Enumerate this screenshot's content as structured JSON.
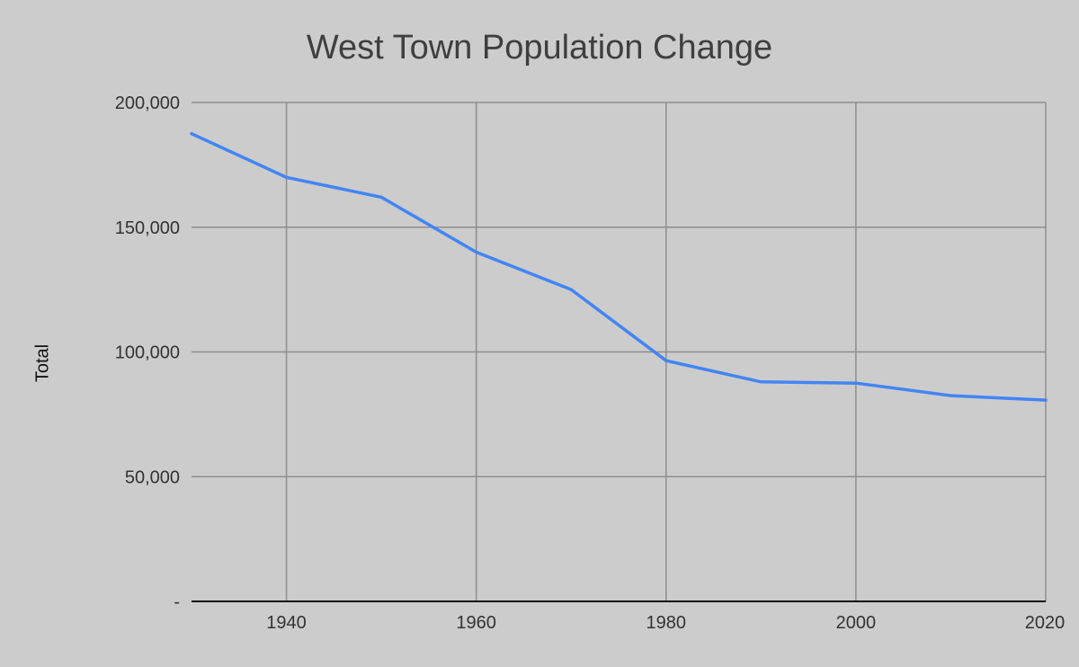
{
  "chart_data": {
    "type": "line",
    "title": "West Town Population Change",
    "xlabel": "",
    "ylabel": "Total",
    "x": [
      1930,
      1940,
      1950,
      1960,
      1970,
      1980,
      1990,
      2000,
      2010,
      2020
    ],
    "series": [
      {
        "values": [
          187500,
          170000,
          162000,
          140000,
          125000,
          96500,
          88000,
          87500,
          82500,
          80700
        ],
        "color": "#4285f4"
      }
    ],
    "xlim": [
      1930,
      2020
    ],
    "ylim": [
      0,
      200000
    ],
    "x_ticks": [
      1940,
      1960,
      1980,
      2000,
      2020
    ],
    "x_tick_labels": [
      "1940",
      "1960",
      "1980",
      "2000",
      "2020"
    ],
    "y_ticks": [
      0,
      50000,
      100000,
      150000,
      200000
    ],
    "y_tick_labels": [
      "-",
      "50,000",
      "100,000",
      "150,000",
      "200,000"
    ],
    "vertical_gridlines": [
      1940,
      1960,
      1980,
      2000,
      2020
    ],
    "grid": true,
    "legend": "none",
    "colors": {
      "background": "#cccccc",
      "gridline": "#8e8e8e",
      "axis": "#111111",
      "line": "#4285f4"
    }
  }
}
